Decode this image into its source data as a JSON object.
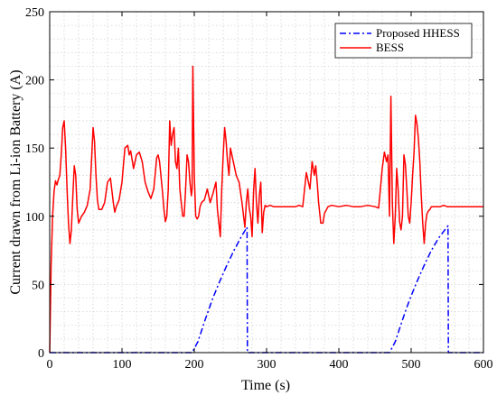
{
  "chart_data": {
    "type": "line",
    "title": "",
    "xlabel": "Time (s)",
    "ylabel": "Current drawn from Li-ion Battery (A)",
    "xlim": [
      0,
      600
    ],
    "ylim": [
      0,
      250
    ],
    "x_ticks": [
      0,
      100,
      200,
      300,
      400,
      500,
      600
    ],
    "y_ticks": [
      0,
      50,
      100,
      150,
      200,
      250
    ],
    "x_minor_step": 20,
    "y_minor_step": 10,
    "grid": true,
    "legend_position": "top-right",
    "series": [
      {
        "name": "Proposed HHESS",
        "color": "#0000ff",
        "style": "dashdot",
        "x": [
          0,
          197,
          205,
          215,
          225,
          235,
          245,
          255,
          265,
          273,
          273.5,
          350,
          470,
          478,
          488,
          498,
          508,
          518,
          528,
          538,
          548,
          551,
          551.5,
          600
        ],
        "y": [
          0,
          0,
          8,
          24,
          39,
          52,
          64,
          75,
          85,
          92,
          0,
          0,
          0,
          8,
          24,
          39,
          52,
          64,
          75,
          84,
          91,
          93,
          0,
          0
        ]
      },
      {
        "name": "BESS",
        "color": "#ff0000",
        "style": "solid",
        "x": [
          0,
          2,
          4,
          6,
          8,
          10,
          12,
          14,
          16,
          18,
          20,
          22,
          24,
          26,
          28,
          30,
          32,
          34,
          36,
          38,
          40,
          44,
          48,
          52,
          56,
          60,
          62,
          64,
          66,
          68,
          72,
          76,
          80,
          84,
          88,
          90,
          92,
          96,
          100,
          104,
          108,
          110,
          112,
          116,
          120,
          124,
          128,
          132,
          136,
          140,
          144,
          148,
          150,
          152,
          156,
          158,
          160,
          162,
          164,
          166,
          168,
          170,
          172,
          174,
          176,
          178,
          180,
          182,
          184,
          186,
          188,
          190,
          192,
          194,
          196,
          197,
          198,
          200,
          202,
          204,
          206,
          208,
          210,
          214,
          218,
          222,
          226,
          230,
          232,
          236,
          238,
          240,
          242,
          244,
          246,
          248,
          250,
          254,
          258,
          262,
          266,
          270,
          272,
          274,
          276,
          278,
          280,
          282,
          284,
          286,
          288,
          290,
          292,
          294,
          296,
          298,
          300,
          305,
          310,
          320,
          330,
          340,
          345,
          350,
          355,
          360,
          363,
          366,
          368,
          370,
          372,
          375,
          378,
          380,
          385,
          390,
          400,
          410,
          420,
          430,
          440,
          450,
          455,
          460,
          463,
          466,
          468,
          470,
          472,
          474,
          476,
          478,
          480,
          482,
          484,
          486,
          488,
          490,
          492,
          494,
          496,
          498,
          500,
          502,
          504,
          506,
          508,
          510,
          512,
          514,
          516,
          518,
          520,
          522,
          524,
          526,
          528,
          530,
          535,
          540,
          545,
          550,
          560,
          570,
          580,
          590,
          600
        ],
        "y": [
          0,
          65,
          100,
          118,
          126,
          123,
          127,
          130,
          145,
          165,
          170,
          150,
          120,
          95,
          80,
          90,
          115,
          137,
          130,
          105,
          95,
          100,
          103,
          108,
          120,
          165,
          155,
          130,
          112,
          105,
          105,
          110,
          125,
          128,
          110,
          103,
          107,
          112,
          125,
          150,
          152,
          145,
          148,
          135,
          145,
          147,
          140,
          125,
          118,
          113,
          120,
          143,
          145,
          140,
          118,
          105,
          96,
          100,
          120,
          170,
          152,
          160,
          165,
          140,
          135,
          150,
          120,
          110,
          100,
          100,
          120,
          145,
          140,
          125,
          115,
          120,
          210,
          130,
          100,
          98,
          100,
          107,
          110,
          112,
          120,
          110,
          117,
          125,
          105,
          85,
          120,
          145,
          165,
          155,
          140,
          130,
          150,
          140,
          130,
          125,
          110,
          92,
          110,
          120,
          106,
          100,
          85,
          118,
          135,
          110,
          95,
          115,
          125,
          88,
          103,
          108,
          107,
          108,
          107,
          107,
          107,
          107,
          108,
          107,
          132,
          120,
          140,
          130,
          137,
          125,
          110,
          95,
          95,
          102,
          107,
          108,
          107,
          108,
          107,
          107,
          108,
          107,
          106,
          135,
          147,
          140,
          145,
          100,
          188,
          110,
          80,
          100,
          135,
          120,
          96,
          90,
          100,
          145,
          138,
          120,
          100,
          95,
          110,
          130,
          147,
          174,
          168,
          157,
          140,
          115,
          95,
          80,
          95,
          102,
          104,
          105,
          107,
          107,
          107,
          107,
          108,
          107,
          107,
          107,
          107,
          107,
          107
        ]
      }
    ]
  }
}
